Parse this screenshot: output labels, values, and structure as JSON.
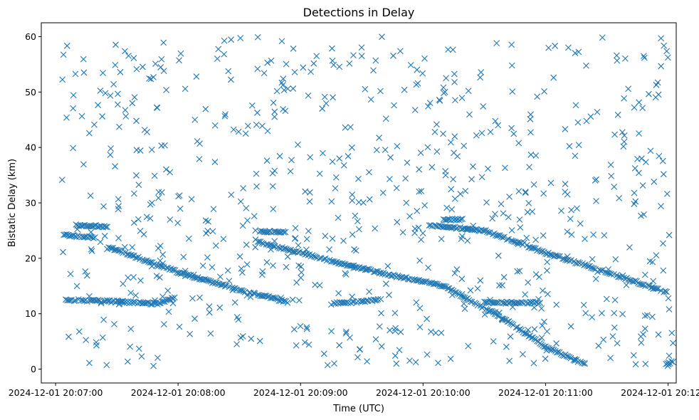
{
  "chart_data": {
    "type": "scatter",
    "title": "Detections in Delay",
    "xlabel": "Time (UTC)",
    "ylabel": "Bistatic Delay (km)",
    "x_axis_type": "datetime",
    "xlim": [
      "2024-12-01 20:06:53",
      "2024-12-01 20:12:04"
    ],
    "ylim": [
      -2.5,
      62.5
    ],
    "x_ticks": [
      "2024-12-01 20:07:00",
      "2024-12-01 20:08:00",
      "2024-12-01 20:09:00",
      "2024-12-01 20:10:00",
      "2024-12-01 20:11:00",
      "2024-12-01 20:12:00"
    ],
    "y_ticks": [
      0,
      10,
      20,
      30,
      40,
      50,
      60
    ],
    "marker": "x",
    "color": "#1f77b4",
    "grid": false,
    "legend": "none",
    "tracks": [
      {
        "points": [
          [
            "2024-12-01 20:07:26",
            22.0
          ],
          [
            "2024-12-01 20:08:00",
            17.5
          ],
          [
            "2024-12-01 20:08:30",
            14.3
          ],
          [
            "2024-12-01 20:08:55",
            12.0
          ]
        ]
      },
      {
        "points": [
          [
            "2024-12-01 20:07:05",
            12.5
          ],
          [
            "2024-12-01 20:07:30",
            12.2
          ],
          [
            "2024-12-01 20:07:50",
            11.8
          ],
          [
            "2024-12-01 20:07:59",
            13.0
          ]
        ]
      },
      {
        "points": [
          [
            "2024-12-01 20:07:04",
            24.2
          ],
          [
            "2024-12-01 20:07:20",
            23.7
          ]
        ]
      },
      {
        "points": [
          [
            "2024-12-01 20:07:10",
            26.0
          ],
          [
            "2024-12-01 20:07:26",
            25.7
          ]
        ]
      },
      {
        "points": [
          [
            "2024-12-01 20:08:39",
            23.0
          ],
          [
            "2024-12-01 20:09:15",
            19.5
          ],
          [
            "2024-12-01 20:09:40",
            17.3
          ],
          [
            "2024-12-01 20:10:10",
            15.0
          ],
          [
            "2024-12-01 20:10:40",
            9.0
          ],
          [
            "2024-12-01 20:11:00",
            4.0
          ],
          [
            "2024-12-01 20:11:20",
            0.8
          ]
        ]
      },
      {
        "points": [
          [
            "2024-12-01 20:08:40",
            24.8
          ],
          [
            "2024-12-01 20:08:54",
            24.8
          ]
        ]
      },
      {
        "points": [
          [
            "2024-12-01 20:09:15",
            11.8
          ],
          [
            "2024-12-01 20:09:40",
            12.5
          ]
        ]
      },
      {
        "points": [
          [
            "2024-12-01 20:10:03",
            26.0
          ],
          [
            "2024-12-01 20:10:30",
            25.0
          ],
          [
            "2024-12-01 20:11:00",
            21.0
          ],
          [
            "2024-12-01 20:11:30",
            17.5
          ],
          [
            "2024-12-01 20:12:00",
            13.8
          ]
        ]
      },
      {
        "points": [
          [
            "2024-12-01 20:10:10",
            27.0
          ],
          [
            "2024-12-01 20:10:20",
            27.0
          ]
        ]
      },
      {
        "points": [
          [
            "2024-12-01 20:10:30",
            12.0
          ],
          [
            "2024-12-01 20:10:58",
            12.0
          ]
        ]
      },
      {
        "points": [
          [
            "2024-12-01 20:11:59",
            0.8
          ],
          [
            "2024-12-01 20:12:03",
            1.5
          ]
        ]
      }
    ],
    "clutter": {
      "x_range": [
        "2024-12-01 20:07:03",
        "2024-12-01 20:12:03"
      ],
      "y_range": [
        0.5,
        60
      ],
      "count": 720
    }
  }
}
